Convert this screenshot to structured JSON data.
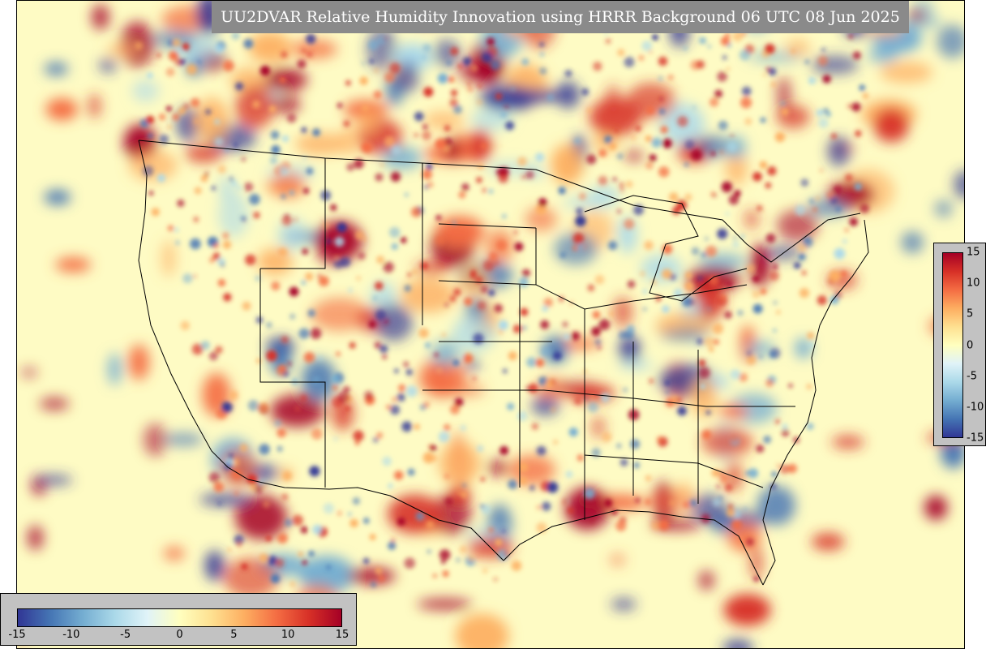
{
  "title": "UU2DVAR Relative Humidity Innovation using HRRR Background 06 UTC 08 Jun 2025",
  "colorbar_right": {
    "min": -15,
    "max": 15,
    "ticks": [
      "15",
      "10",
      "5",
      "0",
      "-5",
      "-10",
      "-15"
    ],
    "tick_values": [
      15,
      10,
      5,
      0,
      -5,
      -10,
      -15
    ]
  },
  "colorbar_bottom": {
    "min": -15,
    "max": 15,
    "ticks": [
      "-15",
      "-10",
      "-5",
      "0",
      "5",
      "10",
      "15"
    ],
    "tick_values": [
      -15,
      -10,
      -5,
      0,
      5,
      10,
      15
    ]
  },
  "colors": {
    "ocean_background": "#fefbc4",
    "title_background": "#8a8a8a",
    "colorbar_panel": "#c2c2c2",
    "positive": "#a50026",
    "negative": "#313695"
  }
}
